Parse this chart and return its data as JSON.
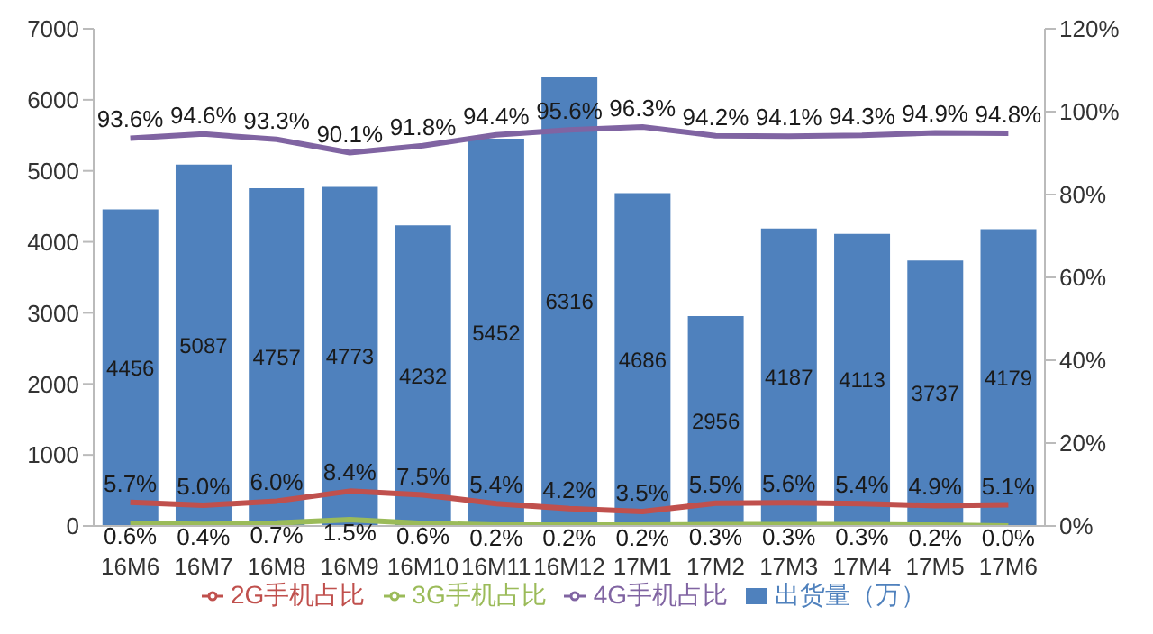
{
  "chart_data": {
    "type": "bar",
    "categories": [
      "16M6",
      "16M7",
      "16M8",
      "16M9",
      "16M10",
      "16M11",
      "16M12",
      "17M1",
      "17M2",
      "17M3",
      "17M4",
      "17M5",
      "17M6"
    ],
    "series": [
      {
        "name": "出货量（万）",
        "axis": "y",
        "color": "#4f81bd",
        "values": [
          4456,
          5087,
          4757,
          4773,
          4232,
          5452,
          6316,
          4686,
          2956,
          4187,
          4113,
          3737,
          4179
        ],
        "value_labels": [
          "4456",
          "5087",
          "4757",
          "4773",
          "4232",
          "5452",
          "6316",
          "4686",
          "2956",
          "4187",
          "4113",
          "3737",
          "4179"
        ]
      },
      {
        "name": "2G手机占比",
        "type": "line",
        "axis": "y2",
        "color": "#c0504d",
        "values": [
          5.7,
          5.0,
          6.0,
          8.4,
          7.5,
          5.4,
          4.2,
          3.5,
          5.5,
          5.6,
          5.4,
          4.9,
          5.1
        ],
        "value_labels": [
          "5.7%",
          "5.0%",
          "6.0%",
          "8.4%",
          "7.5%",
          "5.4%",
          "4.2%",
          "3.5%",
          "5.5%",
          "5.6%",
          "5.4%",
          "4.9%",
          "5.1%"
        ]
      },
      {
        "name": "3G手机占比",
        "type": "line",
        "axis": "y2",
        "color": "#9bbb59",
        "values": [
          0.6,
          0.4,
          0.7,
          1.5,
          0.6,
          0.2,
          0.2,
          0.2,
          0.3,
          0.3,
          0.3,
          0.2,
          0.0
        ],
        "value_labels": [
          "0.6%",
          "0.4%",
          "0.7%",
          "1.5%",
          "0.6%",
          "0.2%",
          "0.2%",
          "0.2%",
          "0.3%",
          "0.3%",
          "0.3%",
          "0.2%",
          "0.0%"
        ]
      },
      {
        "name": "4G手机占比",
        "type": "line",
        "axis": "y2",
        "color": "#8064a2",
        "values": [
          93.6,
          94.6,
          93.3,
          90.1,
          91.8,
          94.4,
          95.6,
          96.3,
          94.2,
          94.1,
          94.3,
          94.9,
          94.8
        ],
        "value_labels": [
          "93.6%",
          "94.6%",
          "93.3%",
          "90.1%",
          "91.8%",
          "94.4%",
          "95.6%",
          "96.3%",
          "94.2%",
          "94.1%",
          "94.3%",
          "94.9%",
          "94.8%"
        ]
      }
    ],
    "ylim": [
      0,
      7000
    ],
    "yticks": [
      0,
      1000,
      2000,
      3000,
      4000,
      5000,
      6000,
      7000
    ],
    "y2lim": [
      0,
      120
    ],
    "y2ticks": [
      {
        "value": 0,
        "label": "0%"
      },
      {
        "value": 20,
        "label": "20%"
      },
      {
        "value": 40,
        "label": "40%"
      },
      {
        "value": 60,
        "label": "60%"
      },
      {
        "value": 80,
        "label": "80%"
      },
      {
        "value": 100,
        "label": "100%"
      },
      {
        "value": 120,
        "label": "120%"
      }
    ],
    "legend": "bottom",
    "grid": false,
    "marker": "none",
    "line_style": "solid"
  }
}
